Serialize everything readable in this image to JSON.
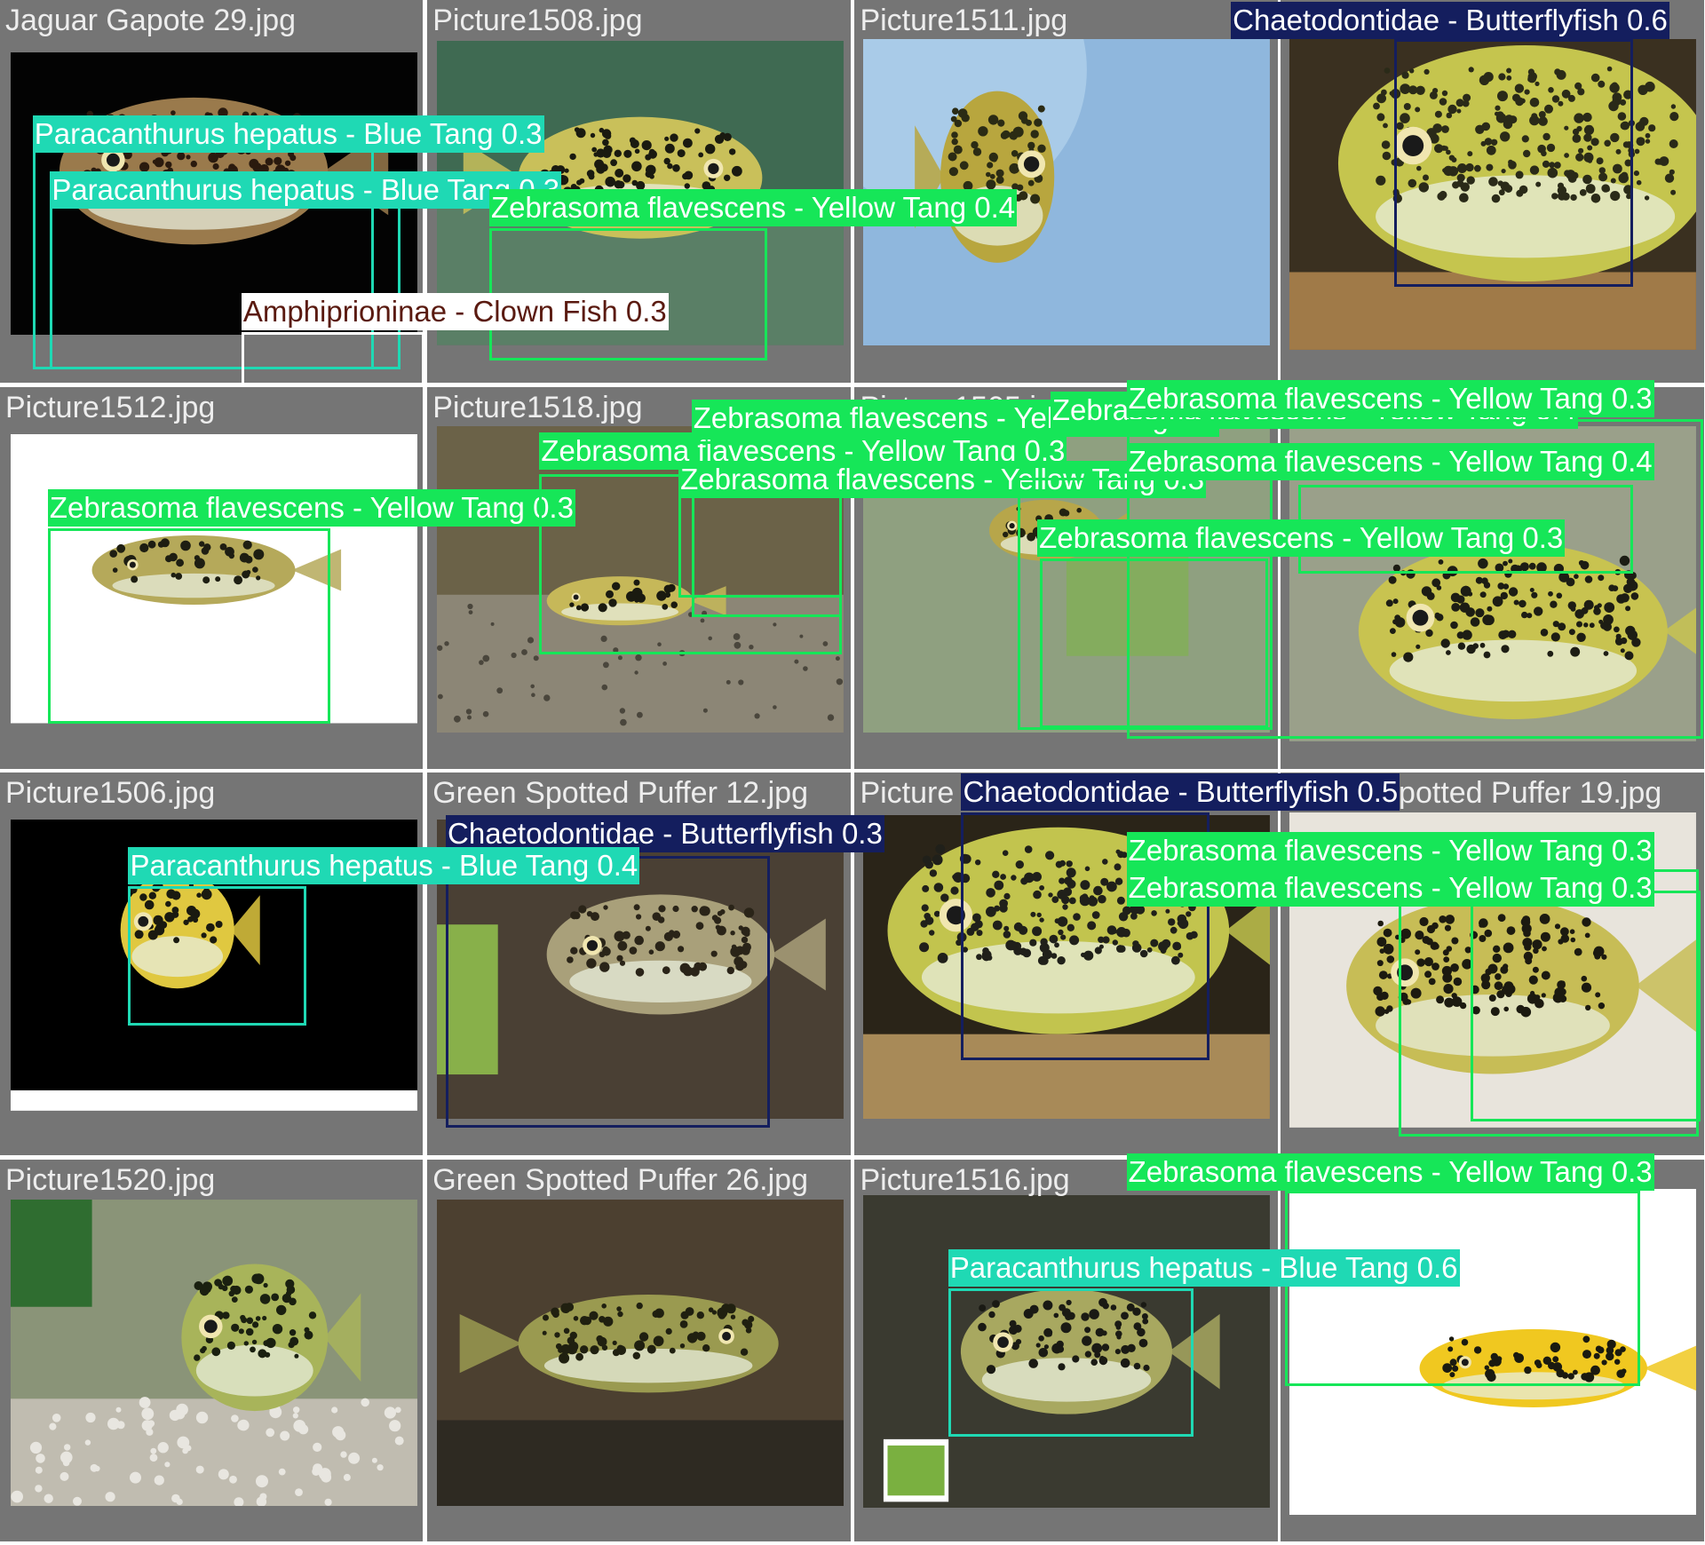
{
  "classes": {
    "blue_tang": {
      "color": "#1fd9b4",
      "text_color": "#ffffff"
    },
    "yellow_tang": {
      "color": "#16e658",
      "text_color": "#ffffff"
    },
    "butterflyfish": {
      "color": "#141e5e",
      "text_color": "#ffffff"
    },
    "clown_fish": {
      "color": "#ffffff",
      "text_color": "#5a1a10"
    }
  },
  "tiles": [
    {
      "filename": "Jaguar Gapote 29.jpg",
      "photo": "black-background-spotted-fish"
    },
    {
      "filename": "Picture1508.jpg",
      "photo": "green-water-puffer"
    },
    {
      "filename": "Picture1511.jpg",
      "photo": "puffer-in-blue-bowl"
    },
    {
      "filename": "",
      "photo": "closeup-puffer-face"
    },
    {
      "filename": "Picture1512.jpg",
      "photo": "white-background-puffer"
    },
    {
      "filename": "Picture1518.jpg",
      "photo": "aquarium-gravel-puffer"
    },
    {
      "filename": "Picture1505.jpg",
      "photo": "plant-aquarium-puffer"
    },
    {
      "filename": "",
      "photo": "closeup-puffer-side"
    },
    {
      "filename": "Picture1506.jpg",
      "photo": "black-background-puffer"
    },
    {
      "filename": "Green Spotted Puffer 12.jpg",
      "photo": "plant-aquarium-puffer-2"
    },
    {
      "filename": "Picture",
      "photo": "closeup-puffer-gravel"
    },
    {
      "filename": "Green Spotted Puffer 19.jpg",
      "photo": "pale-closeup-puffer"
    },
    {
      "filename": "Picture1520.jpg",
      "photo": "puffer-over-pebbles"
    },
    {
      "filename": "Green Spotted Puffer 26.jpg",
      "photo": "puffer-near-rock"
    },
    {
      "filename": "Picture1516.jpg",
      "photo": "puffer-with-logo"
    },
    {
      "filename": "",
      "photo": "white-background-puffer-2"
    }
  ],
  "detections": [
    {
      "class": "blue_tang",
      "label": "Paracanthurus hepatus - Blue Tang 0.3"
    },
    {
      "class": "blue_tang",
      "label": "Paracanthurus hepatus - Blue Tang 0.3"
    },
    {
      "class": "yellow_tang",
      "label": "Zebrasoma flavescens - Yellow Tang 0.4"
    },
    {
      "class": "clown_fish",
      "label": "Amphiprioninae - Clown Fish 0.3"
    },
    {
      "class": "butterflyfish",
      "label": "Chaetodontidae - Butterflyfish 0.6"
    },
    {
      "class": "yellow_tang",
      "label": "Zebrasoma flavescens - Yellow Tang 0.3"
    },
    {
      "class": "yellow_tang",
      "label": "Zebrasoma flavescens - Yellow Tang 0.3"
    },
    {
      "class": "yellow_tang",
      "label": "Zebrasoma flavescens - Yellow Tang 0.3"
    },
    {
      "class": "yellow_tang",
      "label": "Zebrasoma flavescens - Yellow Tang 0.3"
    },
    {
      "class": "yellow_tang",
      "label": "Zebrasoma flavescens - Yellow Tang 0.4"
    },
    {
      "class": "yellow_tang",
      "label": "Zebrasoma flavescens - Yellow Tang 0.3"
    },
    {
      "class": "yellow_tang",
      "label": "Zebrasoma flavescens - Yellow Tang 0.4"
    },
    {
      "class": "yellow_tang",
      "label": "Zebrasoma flavescens - Yellow Tang 0.3"
    },
    {
      "class": "butterflyfish",
      "label": "Chaetodontidae - Butterflyfish 0.3"
    },
    {
      "class": "blue_tang",
      "label": "Paracanthurus hepatus - Blue Tang 0.4"
    },
    {
      "class": "butterflyfish",
      "label": "Chaetodontidae - Butterflyfish 0.5"
    },
    {
      "class": "yellow_tang",
      "label": "Zebrasoma flavescens - Yellow Tang 0.3"
    },
    {
      "class": "yellow_tang",
      "label": "Zebrasoma flavescens - Yellow Tang 0.3"
    },
    {
      "class": "yellow_tang",
      "label": "Zebrasoma flavescens - Yellow Tang 0.3"
    },
    {
      "class": "blue_tang",
      "label": "Paracanthurus hepatus - Blue Tang 0.6"
    }
  ]
}
